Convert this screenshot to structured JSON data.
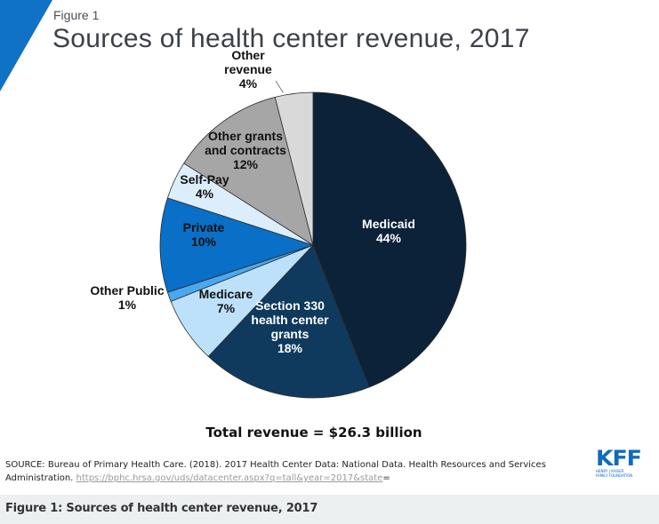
{
  "header": {
    "figure_label": "Figure 1",
    "title": "Sources of health center revenue, 2017",
    "accent_color": "#0f72c4"
  },
  "chart_data": {
    "type": "pie",
    "title": "Sources of health center revenue, 2017",
    "start": "12 o'clock, clockwise",
    "slices": [
      {
        "label": "Medicaid",
        "value": 44,
        "display": "44%",
        "color": "#0b2239",
        "text_color": "#ffffff",
        "label_lines": [
          "Medicaid",
          "44%"
        ]
      },
      {
        "label": "Section 330 health center grants",
        "value": 18,
        "display": "18%",
        "color": "#0f3a5e",
        "text_color": "#ffffff",
        "label_lines": [
          "Section 330",
          "health center",
          "grants",
          "18%"
        ]
      },
      {
        "label": "Medicare",
        "value": 7,
        "display": "7%",
        "color": "#bde1fb",
        "text_color": "#111111",
        "label_lines": [
          "Medicare",
          "7%"
        ]
      },
      {
        "label": "Other Public",
        "value": 1,
        "display": "1%",
        "color": "#4aa8f0",
        "text_color": "#111111",
        "label_lines": [
          "Other Public",
          "1%"
        ],
        "outside": true
      },
      {
        "label": "Private",
        "value": 10,
        "display": "10%",
        "color": "#0a6fc6",
        "text_color": "#111111",
        "label_lines": [
          "Private",
          "10%"
        ]
      },
      {
        "label": "Self-Pay",
        "value": 4,
        "display": "4%",
        "color": "#dceefc",
        "text_color": "#111111",
        "label_lines": [
          "Self-Pay",
          "4%"
        ]
      },
      {
        "label": "Other grants and contracts",
        "value": 12,
        "display": "12%",
        "color": "#a6a6a6",
        "text_color": "#111111",
        "label_lines": [
          "Other grants",
          "and contracts",
          "12%"
        ]
      },
      {
        "label": "Other revenue",
        "value": 4,
        "display": "4%",
        "color": "#d9d9d9",
        "text_color": "#111111",
        "label_lines": [
          "Other",
          "revenue",
          "4%"
        ],
        "outside": true
      }
    ],
    "total_note": "Total revenue = $26.3 billion"
  },
  "source": {
    "text": "SOURCE: Bureau of Primary Health Care. (2018). 2017 Health Center Data: National Data. Health Resources and Services Administration. ",
    "link": "https://bphc.hrsa.gov/uds/datacenter.aspx?q=tall&year=2017&state",
    "trailing": "="
  },
  "logo": {
    "mark": "KFF",
    "line1": "HENRY J KAISER",
    "line2": "FAMILY FOUNDATION"
  },
  "caption": "Figure 1: Sources of health center revenue, 2017"
}
